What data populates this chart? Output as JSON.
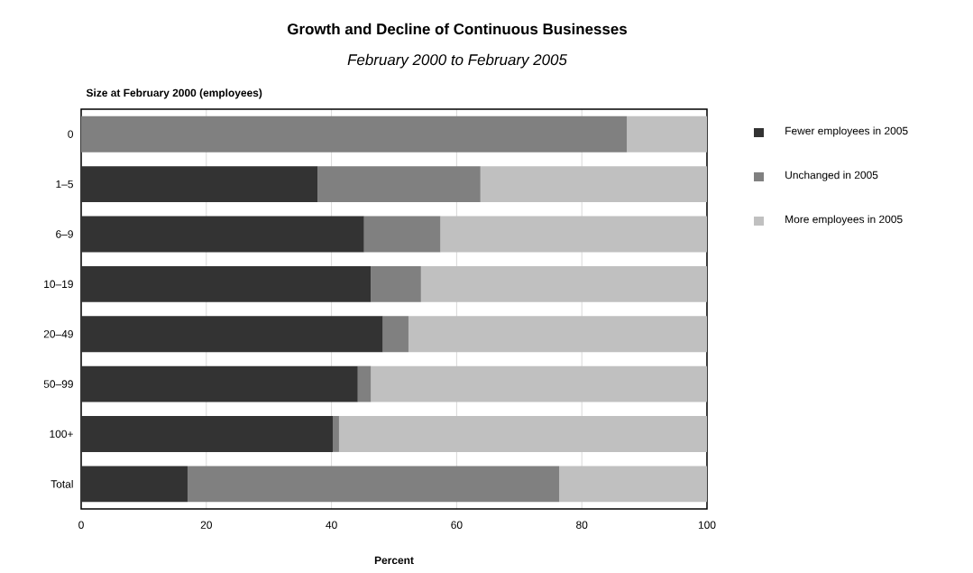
{
  "chart_data": {
    "type": "bar",
    "orientation": "horizontal",
    "stacked": true,
    "title": "Growth and Decline of Continuous Businesses",
    "subtitle": "February 2000 to February 2005",
    "ylabel": "Size at February 2000 (employees)",
    "xlabel": "Percent",
    "categories": [
      "0",
      "1–5",
      "6–9",
      "10–19",
      "20–49",
      "50–99",
      "100+",
      "Total"
    ],
    "series": [
      {
        "name": "Fewer employees in 2005",
        "color": "#333333",
        "values": [
          0,
          37.8,
          45.2,
          46.3,
          48.2,
          44.2,
          40.2,
          17.0
        ]
      },
      {
        "name": "Unchanged in 2005",
        "color": "#808080",
        "values": [
          87.2,
          26.0,
          12.2,
          8.0,
          4.1,
          2.1,
          1.0,
          59.4
        ]
      },
      {
        "name": "More employees in 2005",
        "color": "#c0c0c0",
        "values": [
          12.8,
          36.2,
          42.6,
          45.7,
          47.7,
          53.7,
          58.8,
          23.6
        ]
      }
    ],
    "xlim": [
      0,
      100
    ],
    "xticks": [
      0,
      20,
      40,
      60,
      80,
      100
    ],
    "grid": "x",
    "legend": "right"
  }
}
